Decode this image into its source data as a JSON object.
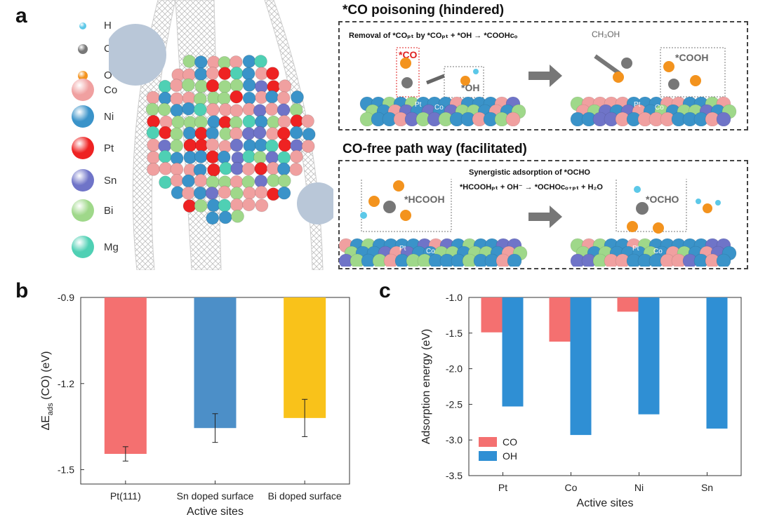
{
  "panel_labels": [
    "a",
    "b",
    "c"
  ],
  "element_legend": [
    {
      "symbol": "H",
      "color": "#5cc8e8"
    },
    {
      "symbol": "C",
      "color": "#777777"
    },
    {
      "symbol": "O",
      "color": "#f3931e"
    },
    {
      "symbol": "Co",
      "color": "#f0a0a0"
    },
    {
      "symbol": "Ni",
      "color": "#3a93c9"
    },
    {
      "symbol": "Pt",
      "color": "#ee2222"
    },
    {
      "symbol": "Sn",
      "color": "#6f74c8"
    },
    {
      "symbol": "Bi",
      "color": "#9fd88a"
    },
    {
      "symbol": "Mg",
      "color": "#4fd0b4"
    }
  ],
  "schematic": {
    "top_title": "*CO poisoning (hindered)",
    "top_caption": "Removal of *COₚₜ by *COₚₜ + *OH → *COOHᴄₒ",
    "top_labels": {
      "co": "*CO",
      "oh": "*OH",
      "cooh": "*COOH",
      "methanol": "CH₃OH",
      "pt": "Pt",
      "co_site": "Co"
    },
    "bottom_title": "CO-free path way (facilitated)",
    "bottom_caption_1": "Synergistic adsorption of *OCHO",
    "bottom_caption_2": "*HCOOHₚₜ + OH⁻ → *OCHOᴄₒ₊ₚₜ + H₂O",
    "bottom_labels": {
      "hcooh": "*HCOOH",
      "ocho": "*OCHO",
      "pt": "Pt",
      "co_site": "Co"
    }
  },
  "chart_data": [
    {
      "type": "bar",
      "categories": [
        "Pt(111)",
        "Sn doped surface",
        "Bi doped surface"
      ],
      "values": [
        -1.445,
        -1.355,
        -1.32
      ],
      "errors": [
        0.025,
        0.05,
        0.065
      ],
      "colors": [
        "#f47070",
        "#4c8fc8",
        "#f9c21a"
      ],
      "xlabel": "Active sites",
      "ylabel": "ΔE",
      "ylabel_sub": "ads",
      "ylabel_tail": " (CO) (eV)",
      "ylim": [
        -1.55,
        -0.9
      ],
      "yticks": [
        "-0.9",
        "-1.2",
        "-1.5"
      ],
      "ytick_values": [
        -0.9,
        -1.2,
        -1.5
      ],
      "grid": false
    },
    {
      "type": "bar",
      "categories": [
        "Pt",
        "Co",
        "Ni",
        "Sn"
      ],
      "series": [
        {
          "name": "CO",
          "values": [
            -1.49,
            -1.62,
            -1.2,
            null
          ],
          "color": "#f47070"
        },
        {
          "name": "OH",
          "values": [
            -2.53,
            -2.93,
            -2.64,
            -2.84
          ],
          "color": "#2f8fd4"
        }
      ],
      "xlabel": "Active sites",
      "ylabel": "Adsorption energy (eV)",
      "ylim": [
        -3.5,
        -1.0
      ],
      "yticks": [
        "-1.0",
        "-1.5",
        "-2.0",
        "-2.5",
        "-3.0",
        "-3.5"
      ],
      "ytick_values": [
        -1.0,
        -1.5,
        -2.0,
        -2.5,
        -3.0,
        -3.5
      ],
      "legend_position": "bottom-left",
      "grid": false
    }
  ]
}
